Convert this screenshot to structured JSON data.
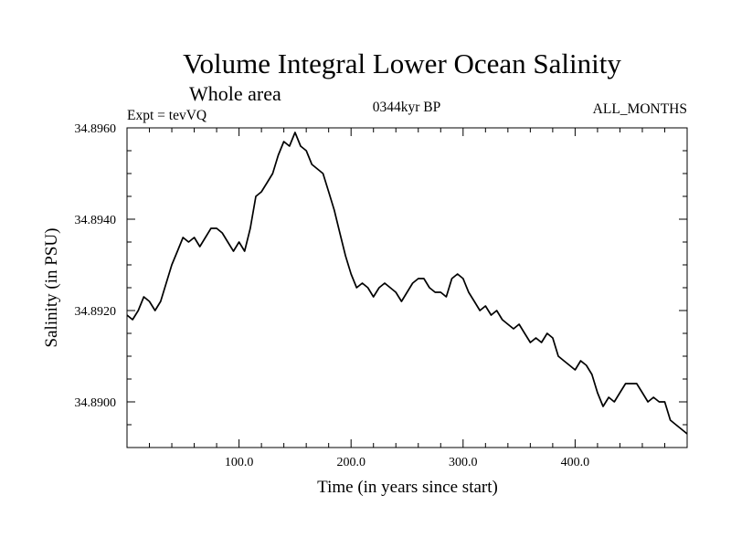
{
  "chart_data": {
    "type": "line",
    "title": "Volume Integral Lower Ocean Salinity",
    "subtitle": "Whole area",
    "expt_label": "Expt = tevVQ",
    "period_label": "0344kyr BP",
    "months_label": "ALL_MONTHS",
    "xlabel": "Time (in years since start)",
    "ylabel": "Salinity (in PSU)",
    "xlim": [
      0,
      500
    ],
    "ylim": [
      34.889,
      34.896
    ],
    "x_ticks": [
      100,
      200,
      300,
      400
    ],
    "x_tick_labels": [
      "100.0",
      "200.0",
      "300.0",
      "400.0"
    ],
    "y_ticks": [
      34.89,
      34.892,
      34.894,
      34.896
    ],
    "y_tick_labels": [
      "34.8900",
      "34.8920",
      "34.8940",
      "34.8960"
    ],
    "grid": false,
    "series": [
      {
        "color": "#000000",
        "x": [
          0,
          5,
          10,
          15,
          20,
          25,
          30,
          35,
          40,
          45,
          50,
          55,
          60,
          65,
          70,
          75,
          80,
          85,
          90,
          95,
          100,
          105,
          110,
          115,
          120,
          125,
          130,
          135,
          140,
          145,
          150,
          155,
          160,
          165,
          170,
          175,
          180,
          185,
          190,
          195,
          200,
          205,
          210,
          215,
          220,
          225,
          230,
          235,
          240,
          245,
          250,
          255,
          260,
          265,
          270,
          275,
          280,
          285,
          290,
          295,
          300,
          305,
          310,
          315,
          320,
          325,
          330,
          335,
          340,
          345,
          350,
          355,
          360,
          365,
          370,
          375,
          380,
          385,
          390,
          395,
          400,
          405,
          410,
          415,
          420,
          425,
          430,
          435,
          440,
          445,
          450,
          455,
          460,
          465,
          470,
          475,
          480,
          485,
          490,
          495,
          500
        ],
        "y": [
          34.8919,
          34.8918,
          34.892,
          34.8923,
          34.8922,
          34.892,
          34.8922,
          34.8926,
          34.893,
          34.8933,
          34.8936,
          34.8935,
          34.8936,
          34.8934,
          34.8936,
          34.8938,
          34.8938,
          34.8937,
          34.8935,
          34.8933,
          34.8935,
          34.8933,
          34.8938,
          34.8945,
          34.8946,
          34.8948,
          34.895,
          34.8954,
          34.8957,
          34.8956,
          34.8959,
          34.8956,
          34.8955,
          34.8952,
          34.8951,
          34.895,
          34.8946,
          34.8942,
          34.8937,
          34.8932,
          34.8928,
          34.8925,
          34.8926,
          34.8925,
          34.8923,
          34.8925,
          34.8926,
          34.8925,
          34.8924,
          34.8922,
          34.8924,
          34.8926,
          34.8927,
          34.8927,
          34.8925,
          34.8924,
          34.8924,
          34.8923,
          34.8927,
          34.8928,
          34.8927,
          34.8924,
          34.8922,
          34.892,
          34.8921,
          34.8919,
          34.892,
          34.8918,
          34.8917,
          34.8916,
          34.8917,
          34.8915,
          34.8913,
          34.8914,
          34.8913,
          34.8915,
          34.8914,
          34.891,
          34.8909,
          34.8908,
          34.8907,
          34.8909,
          34.8908,
          34.8906,
          34.8902,
          34.8899,
          34.8901,
          34.89,
          34.8902,
          34.8904,
          34.8904,
          34.8904,
          34.8902,
          34.89,
          34.8901,
          34.89,
          34.89,
          34.8896,
          34.8895,
          34.8894,
          34.8893
        ]
      }
    ]
  }
}
